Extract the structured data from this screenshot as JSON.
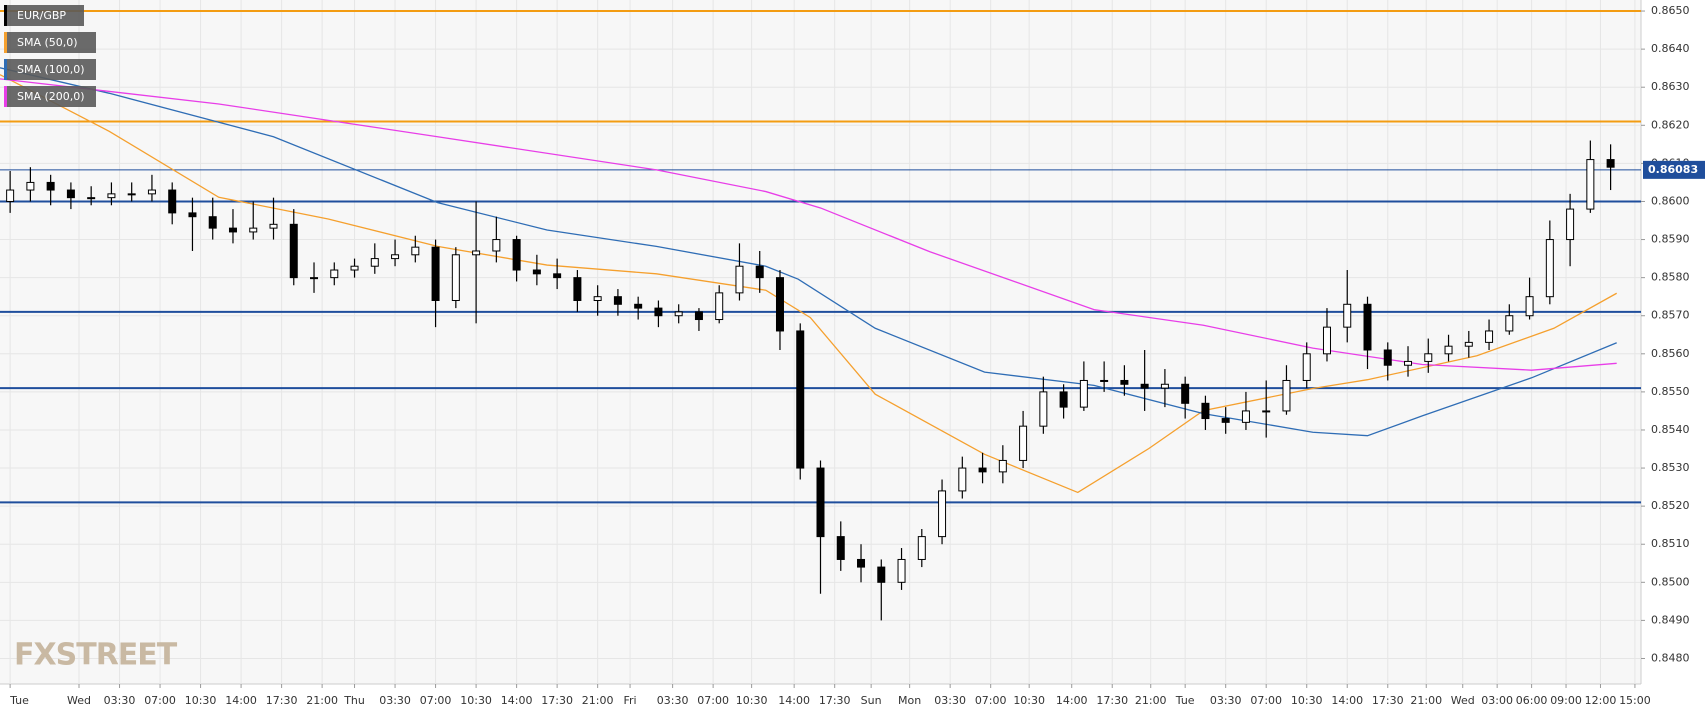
{
  "chart_data": {
    "type": "candlestick",
    "logo": "FXSTREET",
    "ohlc": {
      "name": "EUR/GBP",
      "color": "#000000",
      "open": [
        0.86,
        0.8603,
        0.8605,
        0.8603,
        0.8601,
        0.8601,
        0.8602,
        0.8602,
        0.8603,
        0.8597,
        0.8596,
        0.8593,
        0.8592,
        0.8593,
        0.8594,
        0.858,
        0.858,
        0.8582,
        0.8583,
        0.8585,
        0.8586,
        0.8588,
        0.8574,
        0.8586,
        0.8587,
        0.859,
        0.8582,
        0.8581,
        0.858,
        0.8574,
        0.8575,
        0.8573,
        0.8572,
        0.857,
        0.8571,
        0.8569,
        0.8576,
        0.8583,
        0.858,
        0.8566,
        0.853,
        0.8512,
        0.8506,
        0.8504,
        0.85,
        0.8506,
        0.8512,
        0.8524,
        0.853,
        0.8529,
        0.8532,
        0.8541,
        0.855,
        0.8546,
        0.8553,
        0.8553,
        0.8552,
        0.8551,
        0.8552,
        0.8547,
        0.8543,
        0.8542,
        0.8545,
        0.8545,
        0.8553,
        0.856,
        0.8567,
        0.8573,
        0.8561,
        0.8557,
        0.8558,
        0.856,
        0.8562,
        0.8563,
        0.8566,
        0.857,
        0.8575,
        0.859,
        0.8598,
        0.8611
      ],
      "high": [
        0.8608,
        0.8609,
        0.8607,
        0.8605,
        0.8604,
        0.8605,
        0.8605,
        0.8607,
        0.8605,
        0.8601,
        0.8601,
        0.8598,
        0.86,
        0.8601,
        0.8598,
        0.8584,
        0.8584,
        0.8585,
        0.8589,
        0.859,
        0.8591,
        0.859,
        0.8588,
        0.86,
        0.8596,
        0.8591,
        0.8586,
        0.8585,
        0.8582,
        0.8578,
        0.8577,
        0.8575,
        0.8574,
        0.8573,
        0.8572,
        0.8578,
        0.8589,
        0.8587,
        0.8582,
        0.8568,
        0.8532,
        0.8516,
        0.851,
        0.8506,
        0.8509,
        0.8514,
        0.8527,
        0.8533,
        0.8534,
        0.8536,
        0.8545,
        0.8554,
        0.8552,
        0.8558,
        0.8558,
        0.8557,
        0.8561,
        0.8556,
        0.8554,
        0.8549,
        0.8546,
        0.855,
        0.8553,
        0.8557,
        0.8563,
        0.8572,
        0.8582,
        0.8575,
        0.8563,
        0.8562,
        0.8564,
        0.8565,
        0.8566,
        0.8569,
        0.8573,
        0.858,
        0.8595,
        0.8602,
        0.8616,
        0.8615
      ],
      "low": [
        0.8597,
        0.86,
        0.8599,
        0.8598,
        0.8599,
        0.8599,
        0.86,
        0.86,
        0.8594,
        0.8587,
        0.859,
        0.8589,
        0.859,
        0.859,
        0.8578,
        0.8576,
        0.8578,
        0.858,
        0.8581,
        0.8583,
        0.8584,
        0.8567,
        0.8572,
        0.8568,
        0.8584,
        0.8579,
        0.8578,
        0.8577,
        0.8571,
        0.857,
        0.857,
        0.8569,
        0.8567,
        0.8568,
        0.8566,
        0.8568,
        0.8574,
        0.8576,
        0.8561,
        0.8527,
        0.8497,
        0.8503,
        0.85,
        0.849,
        0.8498,
        0.8504,
        0.851,
        0.8522,
        0.8526,
        0.8526,
        0.853,
        0.8539,
        0.8543,
        0.8545,
        0.855,
        0.8549,
        0.8545,
        0.8546,
        0.8543,
        0.854,
        0.8539,
        0.854,
        0.8538,
        0.8544,
        0.8551,
        0.8558,
        0.8563,
        0.8556,
        0.8553,
        0.8554,
        0.8555,
        0.8558,
        0.8559,
        0.8561,
        0.8565,
        0.8569,
        0.8573,
        0.8583,
        0.8597,
        0.8603
      ],
      "close": [
        0.8603,
        0.8605,
        0.8603,
        0.8601,
        0.8601,
        0.8602,
        0.8602,
        0.8603,
        0.8597,
        0.8596,
        0.8593,
        0.8592,
        0.8593,
        0.8594,
        0.858,
        0.858,
        0.8582,
        0.8583,
        0.8585,
        0.8586,
        0.8588,
        0.8574,
        0.8586,
        0.8587,
        0.859,
        0.8582,
        0.8581,
        0.858,
        0.8574,
        0.8575,
        0.8573,
        0.8572,
        0.857,
        0.8571,
        0.8569,
        0.8576,
        0.8583,
        0.858,
        0.8566,
        0.853,
        0.8512,
        0.8506,
        0.8504,
        0.85,
        0.8506,
        0.8512,
        0.8524,
        0.853,
        0.8529,
        0.8532,
        0.8541,
        0.855,
        0.8546,
        0.8553,
        0.8553,
        0.8552,
        0.8551,
        0.8552,
        0.8547,
        0.8543,
        0.8542,
        0.8545,
        0.8545,
        0.8553,
        0.856,
        0.8567,
        0.8573,
        0.8561,
        0.8557,
        0.8558,
        0.856,
        0.8562,
        0.8563,
        0.8566,
        0.857,
        0.8575,
        0.859,
        0.8598,
        0.8611,
        0.8609
      ]
    },
    "series": [
      {
        "name": "SMA (50,0)",
        "color": "#f5a02e",
        "x": [
          -0.5,
          4.9,
          10.3,
          15.7,
          21.1,
          26.5,
          31.9,
          37.3,
          39.5,
          42.7,
          48.1,
          52.7,
          56.2,
          58.9,
          64.3,
          67.0,
          72.4,
          76.2,
          79.3
        ],
        "values": [
          0.86333,
          0.86184,
          0.86011,
          0.85954,
          0.85882,
          0.85833,
          0.8581,
          0.85767,
          0.85695,
          0.85494,
          0.85336,
          0.85236,
          0.85351,
          0.85451,
          0.85509,
          0.85532,
          0.85595,
          0.85667,
          0.85759
        ]
      },
      {
        "name": "SMA (100,0)",
        "color": "#2f6db5",
        "x": [
          -0.5,
          4.9,
          13.0,
          21.1,
          26.5,
          31.9,
          37.3,
          38.9,
          42.7,
          48.1,
          53.5,
          58.9,
          64.3,
          67.0,
          69.7,
          75.1,
          79.3
        ],
        "values": [
          0.86351,
          0.86284,
          0.8617,
          0.85997,
          0.85925,
          0.85882,
          0.8583,
          0.85796,
          0.85667,
          0.85552,
          0.85517,
          0.85443,
          0.85394,
          0.85385,
          0.85437,
          0.85537,
          0.85629
        ]
      },
      {
        "name": "SMA (200,0)",
        "color": "#e83ee8",
        "x": [
          -0.5,
          10.3,
          21.1,
          31.9,
          37.3,
          40.0,
          45.4,
          53.5,
          58.9,
          64.3,
          69.7,
          75.1,
          79.3
        ],
        "values": [
          0.86322,
          0.86256,
          0.8617,
          0.86083,
          0.86026,
          0.85983,
          0.85868,
          0.85716,
          0.85675,
          0.85615,
          0.85572,
          0.85557,
          0.85575
        ]
      }
    ],
    "levels": [
      {
        "value": 0.865,
        "color": "#f39c12"
      },
      {
        "value": 0.8621,
        "color": "#f39c12"
      },
      {
        "value": 0.86,
        "color": "#1f4e9c"
      },
      {
        "value": 0.8571,
        "color": "#1f4e9c"
      },
      {
        "value": 0.8551,
        "color": "#1f4e9c"
      },
      {
        "value": 0.8521,
        "color": "#1f4e9c"
      }
    ],
    "last_price": 0.86083,
    "grid": true,
    "xlim": [
      -0.5,
      80.5
    ],
    "xticks": [
      {
        "value": 0,
        "label": "Tue"
      },
      {
        "value": 3.4,
        "label": "Wed"
      },
      {
        "value": 5.4,
        "label": "03:30"
      },
      {
        "value": 7.4,
        "label": "07:00"
      },
      {
        "value": 9.4,
        "label": "10:30"
      },
      {
        "value": 11.4,
        "label": "14:00"
      },
      {
        "value": 13.4,
        "label": "17:30"
      },
      {
        "value": 15.4,
        "label": "21:00"
      },
      {
        "value": 17.0,
        "label": "Thu"
      },
      {
        "value": 19.0,
        "label": "03:30"
      },
      {
        "value": 21.0,
        "label": "07:00"
      },
      {
        "value": 23.0,
        "label": "10:30"
      },
      {
        "value": 25.0,
        "label": "14:00"
      },
      {
        "value": 27.0,
        "label": "17:30"
      },
      {
        "value": 29.0,
        "label": "21:00"
      },
      {
        "value": 30.6,
        "label": "Fri"
      },
      {
        "value": 32.7,
        "label": "03:30"
      },
      {
        "value": 34.7,
        "label": "07:00"
      },
      {
        "value": 36.6,
        "label": "10:30"
      },
      {
        "value": 38.7,
        "label": "14:00"
      },
      {
        "value": 40.7,
        "label": "17:30"
      },
      {
        "value": 42.5,
        "label": "Sun"
      },
      {
        "value": 44.4,
        "label": "Mon"
      },
      {
        "value": 46.4,
        "label": "03:30"
      },
      {
        "value": 48.4,
        "label": "07:00"
      },
      {
        "value": 50.3,
        "label": "10:30"
      },
      {
        "value": 52.4,
        "label": "14:00"
      },
      {
        "value": 54.4,
        "label": "17:30"
      },
      {
        "value": 56.3,
        "label": "21:00"
      },
      {
        "value": 58.0,
        "label": "Tue"
      },
      {
        "value": 60.0,
        "label": "03:30"
      },
      {
        "value": 62.0,
        "label": "07:00"
      },
      {
        "value": 64.0,
        "label": "10:30"
      },
      {
        "value": 66.0,
        "label": "14:00"
      },
      {
        "value": 68.0,
        "label": "17:30"
      },
      {
        "value": 69.9,
        "label": "21:00"
      },
      {
        "value": 71.7,
        "label": "Wed"
      },
      {
        "value": 73.4,
        "label": "03:00"
      },
      {
        "value": 75.1,
        "label": "06:00"
      },
      {
        "value": 76.8,
        "label": "09:00"
      },
      {
        "value": 78.5,
        "label": "12:00"
      },
      {
        "value": 80.2,
        "label": "15:00"
      }
    ],
    "ylim": [
      0.84733,
      0.86529
    ],
    "yticks": [
      {
        "value": 0.848,
        "label": "0.8480"
      },
      {
        "value": 0.849,
        "label": "0.8490"
      },
      {
        "value": 0.85,
        "label": "0.8500"
      },
      {
        "value": 0.851,
        "label": "0.8510"
      },
      {
        "value": 0.852,
        "label": "0.8520"
      },
      {
        "value": 0.853,
        "label": "0.8530"
      },
      {
        "value": 0.854,
        "label": "0.8540"
      },
      {
        "value": 0.855,
        "label": "0.8550"
      },
      {
        "value": 0.856,
        "label": "0.8560"
      },
      {
        "value": 0.857,
        "label": "0.8570"
      },
      {
        "value": 0.858,
        "label": "0.8580"
      },
      {
        "value": 0.859,
        "label": "0.8590"
      },
      {
        "value": 0.86,
        "label": "0.8600"
      },
      {
        "value": 0.861,
        "label": "0.8610"
      },
      {
        "value": 0.862,
        "label": "0.8620"
      },
      {
        "value": 0.863,
        "label": "0.8630"
      },
      {
        "value": 0.864,
        "label": "0.8640"
      },
      {
        "value": 0.865,
        "label": "0.8650"
      }
    ]
  }
}
